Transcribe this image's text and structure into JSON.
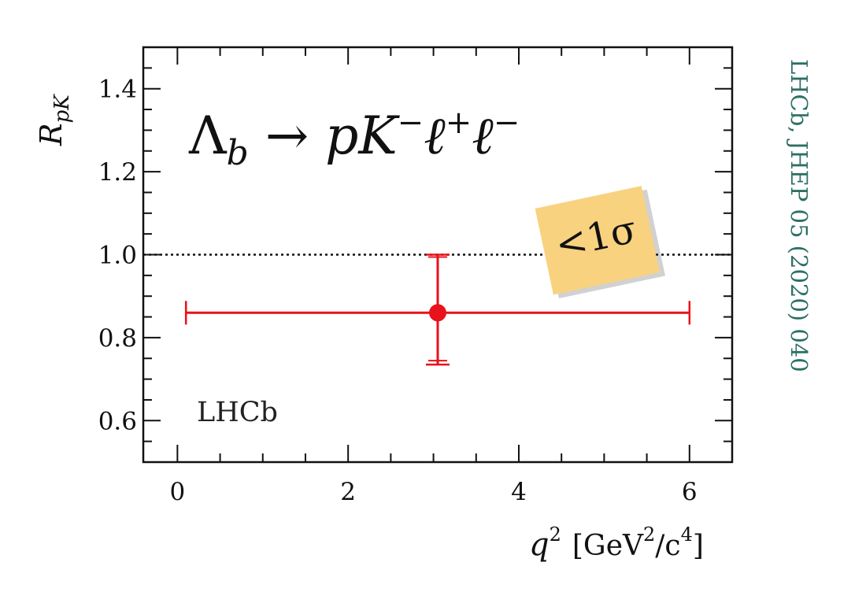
{
  "chart_data": {
    "type": "scatter",
    "title": "Λb → pK⁻ℓ⁺ℓ⁻",
    "experiment_label": "LHCb",
    "citation": "LHCb, JHEP 05 (2020) 040",
    "xlabel": "q² [GeV²/c⁴]",
    "ylabel": "R_pK",
    "xlim": [
      -0.4,
      6.5
    ],
    "ylim": [
      0.5,
      1.5
    ],
    "x_ticks": [
      0,
      2,
      4,
      6
    ],
    "y_ticks": [
      0.6,
      0.8,
      1.0,
      1.2,
      1.4
    ],
    "x_tick_labels": [
      "0",
      "2",
      "4",
      "6"
    ],
    "y_tick_labels": [
      "0.6",
      "0.8",
      "1.0",
      "1.2",
      "1.4"
    ],
    "reference_line": {
      "y": 1.0,
      "style": "dotted"
    },
    "series": [
      {
        "points": [
          {
            "x": 3.05,
            "y": 0.86,
            "x_low": 0.1,
            "x_high": 6.0,
            "y_low": 0.735,
            "y_high": 1.0
          }
        ],
        "color": "#e8121b"
      }
    ],
    "annotation": {
      "text": "<1σ",
      "background": "#f9d27f"
    },
    "grid": false
  },
  "labels": {
    "title_main": "Λ",
    "title_sub": "b",
    "title_rest": " → pK",
    "exp_minus1": "−",
    "title_l1": "ℓ",
    "exp_plus": "+",
    "title_l2": "ℓ",
    "exp_minus2": "−",
    "ylabel_R": "R",
    "ylabel_sub": "pK",
    "xlabel_q": "q",
    "xlabel_exp": "2",
    "xlabel_unit1": "[GeV",
    "xlabel_exp2": "2",
    "xlabel_unit2": "/c",
    "xlabel_exp3": "4",
    "xlabel_unit3": "]"
  },
  "colors": {
    "data": "#e8121b",
    "citation": "#2e6f66",
    "annotation_bg": "#f9d27f"
  }
}
